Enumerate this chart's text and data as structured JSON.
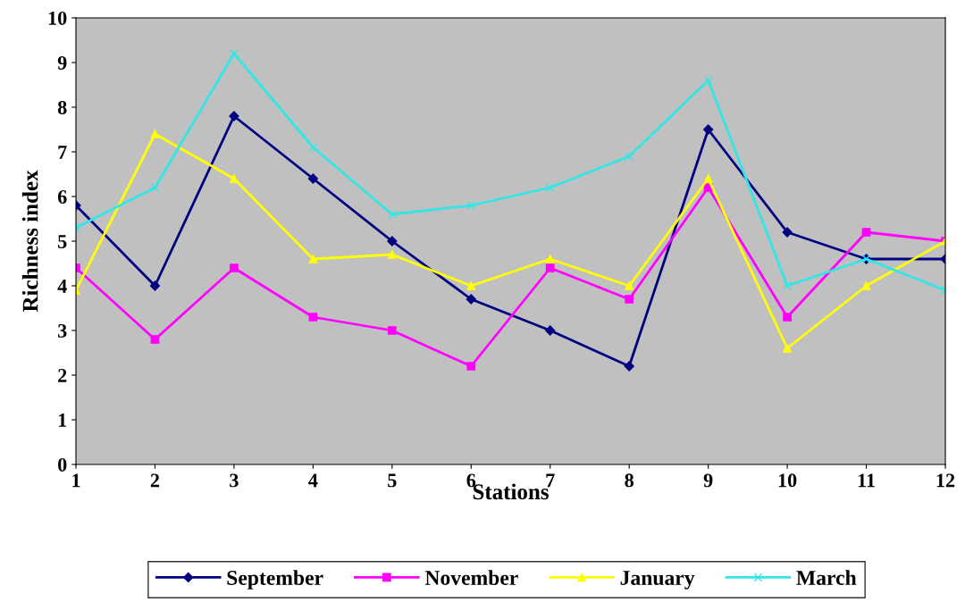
{
  "chart_data": {
    "type": "line",
    "xlabel": "Stations",
    "ylabel": "Richness index",
    "x": [
      1,
      2,
      3,
      4,
      5,
      6,
      7,
      8,
      9,
      10,
      11,
      12
    ],
    "xlim": [
      1,
      12
    ],
    "xticks": [
      1,
      2,
      3,
      4,
      5,
      6,
      7,
      8,
      9,
      10,
      11,
      12
    ],
    "ylim": [
      0,
      10
    ],
    "yticks": [
      0,
      1,
      2,
      3,
      4,
      5,
      6,
      7,
      8,
      9,
      10
    ],
    "grid": false,
    "legend": "bottom",
    "series": [
      {
        "name": "September",
        "color": "#000080",
        "marker": "diamond",
        "values": [
          5.8,
          4.0,
          7.8,
          6.4,
          5.0,
          3.7,
          3.0,
          2.2,
          7.5,
          5.2,
          4.6,
          4.6
        ]
      },
      {
        "name": "November",
        "color": "#ff00ff",
        "marker": "square",
        "values": [
          4.4,
          2.8,
          4.4,
          3.3,
          3.0,
          2.2,
          4.4,
          3.7,
          6.2,
          3.3,
          5.2,
          5.0
        ]
      },
      {
        "name": "January",
        "color": "#ffff00",
        "marker": "triangle",
        "values": [
          3.9,
          7.4,
          6.4,
          4.6,
          4.7,
          4.0,
          4.6,
          4.0,
          6.4,
          2.6,
          4.0,
          5.0
        ]
      },
      {
        "name": "March",
        "color": "#33e6e6",
        "marker": "cross",
        "values": [
          5.3,
          6.2,
          9.2,
          7.1,
          5.6,
          5.8,
          6.2,
          6.9,
          8.6,
          4.0,
          4.6,
          3.9
        ]
      }
    ]
  }
}
